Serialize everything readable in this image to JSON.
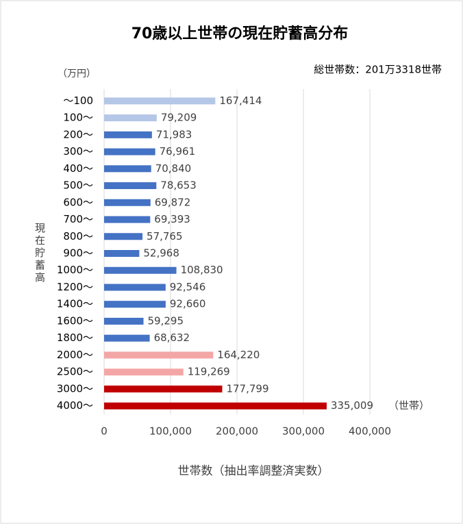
{
  "chart_data": {
    "type": "barh",
    "title": "70歳以上世帯の現在貯蓄高分布",
    "subtitle": "総世帯数：201万3318世帯",
    "unit_label": "（万円）",
    "y_label": "現在貯蓄高",
    "x_label": "世帯数（抽出率調整済実数）",
    "annotation": "（世帯）",
    "categories": [
      "～100",
      "100～",
      "200～",
      "300～",
      "400～",
      "500～",
      "600～",
      "700～",
      "800～",
      "900～",
      "1000～",
      "1200～",
      "1400～",
      "1600～",
      "1800～",
      "2000～",
      "2500～",
      "3000～",
      "4000～"
    ],
    "values": [
      167414,
      79209,
      71983,
      76961,
      70840,
      78653,
      69872,
      69393,
      57765,
      52968,
      108830,
      92546,
      92660,
      59295,
      68632,
      164220,
      119269,
      177799,
      335009
    ],
    "value_labels": [
      "167,414",
      "79,209",
      "71,983",
      "76,961",
      "70,840",
      "78,653",
      "69,872",
      "69,393",
      "57,765",
      "52,968",
      "108,830",
      "92,546",
      "92,660",
      "59,295",
      "68,632",
      "164,220",
      "119,269",
      "177,799",
      "335,009"
    ],
    "colors": [
      "#b4c7e7",
      "#b4c7e7",
      "#4472c4",
      "#4472c4",
      "#4472c4",
      "#4472c4",
      "#4472c4",
      "#4472c4",
      "#4472c4",
      "#4472c4",
      "#4472c4",
      "#4472c4",
      "#4472c4",
      "#4472c4",
      "#4472c4",
      "#f4a6a6",
      "#f4a6a6",
      "#c00000",
      "#c00000"
    ],
    "xlim": [
      0,
      400000
    ],
    "xticks": [
      0,
      {
        "value": 100000,
        "label": "100,000"
      },
      {
        "value": 200000,
        "label": "200,000"
      },
      {
        "value": 300000,
        "label": "300,000"
      },
      {
        "value": 400000,
        "label": "400,000"
      }
    ],
    "grid": true
  }
}
